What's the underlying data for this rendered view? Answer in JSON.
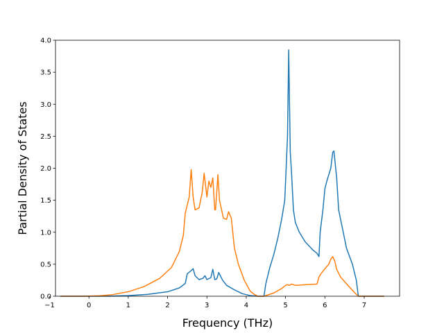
{
  "chart_data": {
    "type": "line",
    "title": "",
    "xlabel": "Frequency (THz)",
    "ylabel": "Partial Density of States",
    "xlim": [
      -0.85,
      7.9
    ],
    "ylim": [
      0.0,
      4.0
    ],
    "xticks": [
      -1,
      0,
      1,
      2,
      3,
      4,
      5,
      6,
      7
    ],
    "xtick_labels": [
      "−1",
      "0",
      "1",
      "2",
      "3",
      "4",
      "5",
      "6",
      "7"
    ],
    "yticks": [
      0.0,
      0.5,
      1.0,
      1.5,
      2.0,
      2.5,
      3.0,
      3.5,
      4.0
    ],
    "ytick_labels": [
      "0.0",
      "0.5",
      "1.0",
      "1.5",
      "2.0",
      "2.5",
      "3.0",
      "3.5",
      "4.0"
    ],
    "grid": false,
    "legend": "none",
    "series": [
      {
        "color": "#1f77b4",
        "x": [
          -0.72,
          0.0,
          0.5,
          1.0,
          1.5,
          2.0,
          2.3,
          2.45,
          2.5,
          2.6,
          2.65,
          2.7,
          2.8,
          2.9,
          2.95,
          3.0,
          3.1,
          3.15,
          3.2,
          3.25,
          3.3,
          3.4,
          3.5,
          3.7,
          3.9,
          4.1,
          4.3,
          4.45,
          4.5,
          4.6,
          4.7,
          4.8,
          4.9,
          4.98,
          5.05,
          5.08,
          5.12,
          5.15,
          5.2,
          5.25,
          5.35,
          5.5,
          5.7,
          5.8,
          5.85,
          5.88,
          5.95,
          6.0,
          6.05,
          6.15,
          6.2,
          6.23,
          6.3,
          6.35,
          6.45,
          6.55,
          6.7,
          6.8,
          6.85,
          7.0,
          7.5
        ],
        "y": [
          0.0,
          0.0,
          0.002,
          0.01,
          0.03,
          0.07,
          0.13,
          0.2,
          0.35,
          0.4,
          0.43,
          0.32,
          0.26,
          0.28,
          0.32,
          0.26,
          0.29,
          0.42,
          0.26,
          0.27,
          0.37,
          0.25,
          0.17,
          0.1,
          0.04,
          0.01,
          0.0,
          0.0,
          0.2,
          0.45,
          0.65,
          0.9,
          1.2,
          1.5,
          2.5,
          3.85,
          2.25,
          1.95,
          1.35,
          1.15,
          1.0,
          0.85,
          0.72,
          0.67,
          0.62,
          1.0,
          1.35,
          1.68,
          1.8,
          2.0,
          2.25,
          2.27,
          1.85,
          1.35,
          1.05,
          0.75,
          0.5,
          0.25,
          0.0,
          0.0,
          0.0
        ]
      },
      {
        "color": "#ff7f0e",
        "x": [
          -0.72,
          0.0,
          0.3,
          0.6,
          1.0,
          1.4,
          1.8,
          2.1,
          2.3,
          2.4,
          2.45,
          2.55,
          2.6,
          2.65,
          2.7,
          2.8,
          2.88,
          2.93,
          3.0,
          3.05,
          3.1,
          3.15,
          3.2,
          3.22,
          3.28,
          3.32,
          3.42,
          3.5,
          3.55,
          3.62,
          3.7,
          3.8,
          3.95,
          4.1,
          4.2,
          4.3,
          4.45,
          4.55,
          4.7,
          4.9,
          5.0,
          5.05,
          5.1,
          5.15,
          5.25,
          5.5,
          5.8,
          5.85,
          5.9,
          6.0,
          6.1,
          6.15,
          6.2,
          6.25,
          6.3,
          6.4,
          6.6,
          6.75,
          6.85,
          7.0,
          7.5
        ],
        "y": [
          0.0,
          0.002,
          0.008,
          0.025,
          0.07,
          0.15,
          0.28,
          0.45,
          0.7,
          0.95,
          1.3,
          1.55,
          1.98,
          1.55,
          1.35,
          1.38,
          1.62,
          1.92,
          1.55,
          1.8,
          1.7,
          1.85,
          1.35,
          1.35,
          1.9,
          1.5,
          1.22,
          1.2,
          1.32,
          1.22,
          0.75,
          0.5,
          0.25,
          0.08,
          0.03,
          0.0,
          0.0,
          0.02,
          0.05,
          0.12,
          0.17,
          0.18,
          0.17,
          0.19,
          0.17,
          0.18,
          0.19,
          0.3,
          0.35,
          0.43,
          0.5,
          0.58,
          0.62,
          0.55,
          0.42,
          0.3,
          0.16,
          0.06,
          0.0,
          0.0,
          0.0
        ]
      }
    ]
  }
}
